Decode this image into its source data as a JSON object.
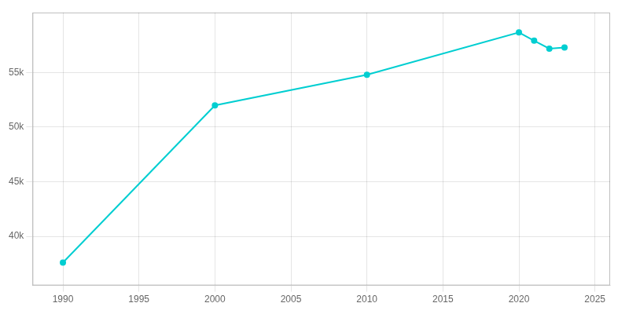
{
  "chart_data": {
    "type": "line",
    "x": [
      1990,
      2000,
      2010,
      2020,
      2021,
      2022,
      2023
    ],
    "values": [
      37589,
      52000,
      54800,
      58682,
      57921,
      57200,
      57300
    ],
    "color": "#00CED1",
    "marker": "o",
    "xlim": [
      1988,
      2026
    ],
    "xticks": [
      1990,
      1995,
      2000,
      2005,
      2010,
      2015,
      2020,
      2025
    ],
    "ylim": [
      35500,
      60500
    ],
    "yticks": [
      {
        "value": 40000,
        "label": "40k"
      },
      {
        "value": 45000,
        "label": "45k"
      },
      {
        "value": 50000,
        "label": "50k"
      },
      {
        "value": 55000,
        "label": "55k"
      }
    ],
    "grid": true
  }
}
